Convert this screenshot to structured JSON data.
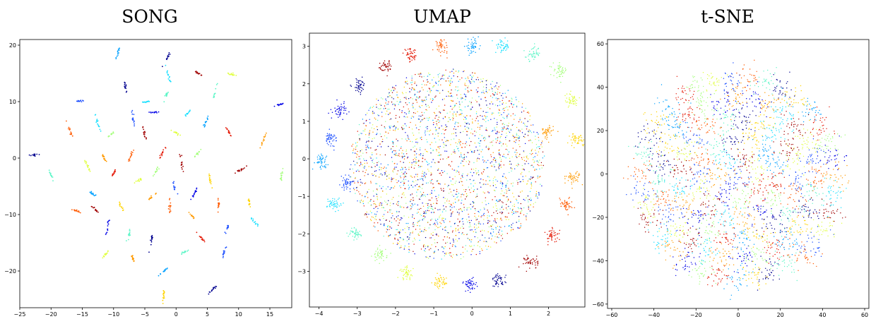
{
  "chart_data": [
    {
      "type": "scatter",
      "title": "SONG",
      "xlim": [
        -25,
        18.5
      ],
      "ylim": [
        -26.5,
        21
      ],
      "xticks": [
        -25,
        -20,
        -15,
        -10,
        -5,
        0,
        5,
        10,
        15
      ],
      "yticks": [
        -20,
        -10,
        0,
        10,
        20
      ],
      "grid": false,
      "legend": "none",
      "point_style": "tight-clusters",
      "clusters": [
        [
          -22.5,
          0.6
        ],
        [
          -20,
          -3
        ],
        [
          -17,
          4.8
        ],
        [
          -15.2,
          10.1
        ],
        [
          -14.2,
          -1.3
        ],
        [
          -13,
          -9
        ],
        [
          -12.5,
          6.2
        ],
        [
          -11.5,
          0
        ],
        [
          -11,
          -12.5
        ],
        [
          -10.4,
          4.2
        ],
        [
          -10,
          -2.7
        ],
        [
          -9.3,
          18.6
        ],
        [
          -8.8,
          -8.6
        ],
        [
          -8.1,
          12.6
        ],
        [
          -7.5,
          -13.4
        ],
        [
          -7.2,
          0.5
        ],
        [
          -6.8,
          6.5
        ],
        [
          -6,
          -4
        ],
        [
          -5.1,
          4.4
        ],
        [
          -4.6,
          10
        ],
        [
          -4,
          -7
        ],
        [
          -3.5,
          8.1
        ],
        [
          -3.1,
          -2.1
        ],
        [
          -2.1,
          1.1
        ],
        [
          -1.8,
          -19.9
        ],
        [
          -2,
          -24.5
        ],
        [
          -1.3,
          18
        ],
        [
          -1.6,
          11
        ],
        [
          -1,
          -8.5
        ],
        [
          -0.3,
          -5
        ],
        [
          0,
          4.5
        ],
        [
          0.9,
          -0.8
        ],
        [
          1.9,
          8
        ],
        [
          2.6,
          -10.3
        ],
        [
          3.1,
          -5.9
        ],
        [
          3.4,
          0.8
        ],
        [
          4.1,
          -14.2
        ],
        [
          4.8,
          6.5
        ],
        [
          5.4,
          -3.7
        ],
        [
          5.8,
          -23.3
        ],
        [
          6.1,
          11.2
        ],
        [
          6.8,
          -8.2
        ],
        [
          8.1,
          -12.6
        ],
        [
          8.9,
          14.8
        ],
        [
          10.3,
          -2.1
        ],
        [
          12.5,
          -11.3
        ],
        [
          13.8,
          2.8
        ],
        [
          16.4,
          9.4
        ],
        [
          16.9,
          -3.2
        ],
        [
          8.4,
          4.7
        ],
        [
          -13.4,
          -6.3
        ],
        [
          11.7,
          -7.8
        ],
        [
          -4,
          -14.7
        ],
        [
          1.4,
          -16.6
        ],
        [
          -16,
          -9.3
        ],
        [
          7.6,
          -17.1
        ],
        [
          -11.3,
          -17.1
        ],
        [
          3.7,
          14.9
        ],
        [
          -1.2,
          14.5
        ],
        [
          -6.9,
          -17.9
        ]
      ]
    },
    {
      "type": "scatter",
      "title": "UMAP",
      "xlim": [
        -4.25,
        2.95
      ],
      "ylim": [
        -3.95,
        3.35
      ],
      "xticks": [
        -4,
        -3,
        -2,
        -1,
        0,
        1,
        2
      ],
      "yticks": [
        -3,
        -2,
        -1,
        0,
        1,
        2,
        3
      ],
      "grid": false,
      "legend": "none",
      "point_style": "diffuse-with-ring-clusters",
      "clusters": [
        [
          0,
          3
        ],
        [
          -0.8,
          3
        ],
        [
          0.8,
          3
        ],
        [
          -1.6,
          2.75
        ],
        [
          1.6,
          2.8
        ],
        [
          -2.25,
          2.45
        ],
        [
          2.3,
          2.35
        ],
        [
          -2.95,
          1.95
        ],
        [
          2.6,
          1.55
        ],
        [
          -3.45,
          1.3
        ],
        [
          2.75,
          0.5
        ],
        [
          -3.7,
          0.55
        ],
        [
          2.65,
          -0.5
        ],
        [
          -3.95,
          -0.05
        ],
        [
          2.45,
          -1.2
        ],
        [
          -3.6,
          -1.2
        ],
        [
          2.1,
          -2.05
        ],
        [
          -3.05,
          -2
        ],
        [
          1.55,
          -2.75
        ],
        [
          -2.4,
          -2.55
        ],
        [
          0.7,
          -3.25
        ],
        [
          -1.7,
          -3.05
        ],
        [
          -0.05,
          -3.35
        ],
        [
          -0.85,
          -3.3
        ],
        [
          -3.25,
          -0.65
        ],
        [
          1.95,
          0.7
        ]
      ]
    },
    {
      "type": "scatter",
      "title": "t-SNE",
      "xlim": [
        -62,
        62
      ],
      "ylim": [
        -62,
        62
      ],
      "xticks": [
        -60,
        -40,
        -20,
        0,
        20,
        40,
        60
      ],
      "yticks": [
        -60,
        -40,
        -20,
        0,
        20,
        40,
        60
      ],
      "grid": false,
      "legend": "none",
      "point_style": "dense-disk-of-clusters",
      "clusters": []
    }
  ],
  "palette": [
    "#00008f",
    "#0000e6",
    "#1a4dff",
    "#00a0ff",
    "#19e0ff",
    "#5ff6c8",
    "#a6ff7e",
    "#e0ff3e",
    "#ffd400",
    "#ff9a00",
    "#ff5a00",
    "#e31400",
    "#a00000"
  ]
}
